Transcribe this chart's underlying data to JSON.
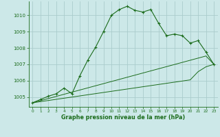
{
  "title": "Graphe pression niveau de la mer (hPa)",
  "bg_color": "#cce8e8",
  "grid_color": "#aacccc",
  "line_color": "#1a6b1a",
  "x_ticks": [
    0,
    1,
    2,
    3,
    4,
    5,
    6,
    7,
    8,
    9,
    10,
    11,
    12,
    13,
    14,
    15,
    16,
    17,
    18,
    19,
    20,
    21,
    22,
    23
  ],
  "ylim": [
    1004.4,
    1010.85
  ],
  "yticks": [
    1005,
    1006,
    1007,
    1008,
    1009,
    1010
  ],
  "main_series": [
    1004.65,
    1004.85,
    1005.05,
    1005.2,
    1005.55,
    1005.2,
    1006.3,
    1007.25,
    1008.05,
    1009.0,
    1010.0,
    1010.35,
    1010.55,
    1010.3,
    1010.2,
    1010.35,
    1009.5,
    1008.75,
    1008.85,
    1008.75,
    1008.3,
    1008.45,
    1007.75,
    1007.0
  ],
  "trend1": [
    1004.65,
    1004.78,
    1004.91,
    1005.04,
    1005.17,
    1005.3,
    1005.43,
    1005.56,
    1005.69,
    1005.82,
    1005.95,
    1006.08,
    1006.21,
    1006.34,
    1006.47,
    1006.6,
    1006.73,
    1006.86,
    1006.99,
    1007.12,
    1007.25,
    1007.38,
    1007.51,
    1007.0
  ],
  "trend2": [
    1004.65,
    1004.72,
    1004.79,
    1004.86,
    1004.93,
    1005.0,
    1005.07,
    1005.14,
    1005.21,
    1005.28,
    1005.35,
    1005.42,
    1005.49,
    1005.56,
    1005.63,
    1005.7,
    1005.77,
    1005.84,
    1005.91,
    1005.98,
    1006.05,
    1006.55,
    1006.85,
    1007.0
  ]
}
